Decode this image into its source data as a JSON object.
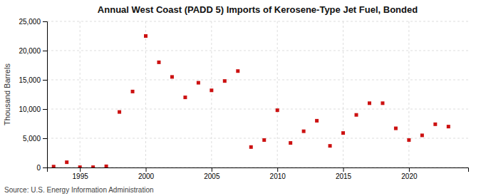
{
  "chart_data": {
    "type": "scatter",
    "title": "Annual West Coast (PADD 5) Imports of Kerosene-Type Jet Fuel, Bonded",
    "ylabel": "Thousand Barrels",
    "source": "Source: U.S. Energy Information Administration",
    "x": [
      1993,
      1994,
      1995,
      1996,
      1997,
      1998,
      1999,
      2000,
      2001,
      2002,
      2003,
      2004,
      2005,
      2006,
      2007,
      2008,
      2009,
      2010,
      2011,
      2012,
      2013,
      2014,
      2015,
      2016,
      2017,
      2018,
      2019,
      2020,
      2021,
      2022,
      2023
    ],
    "values": [
      150,
      900,
      50,
      50,
      200,
      9500,
      13000,
      22500,
      18000,
      15500,
      12000,
      14500,
      13200,
      14800,
      16500,
      3500,
      4700,
      9800,
      4200,
      6200,
      8000,
      3700,
      5900,
      9000,
      11000,
      11000,
      6700,
      4700,
      5500,
      7400,
      7000
    ],
    "color": "#cc1111",
    "marker": "square",
    "xlim": [
      1992.5,
      2024.5
    ],
    "ylim": [
      0,
      25000
    ],
    "xticks": [
      1995,
      2000,
      2005,
      2010,
      2015,
      2020
    ],
    "yticks": [
      0,
      {
        "value": 5000,
        "label": "5,000"
      },
      {
        "value": 10000,
        "label": "10,000"
      },
      {
        "value": 15000,
        "label": "15,000"
      },
      {
        "value": 20000,
        "label": "20,000"
      },
      {
        "value": 25000,
        "label": "25,000"
      }
    ],
    "grid": true
  }
}
